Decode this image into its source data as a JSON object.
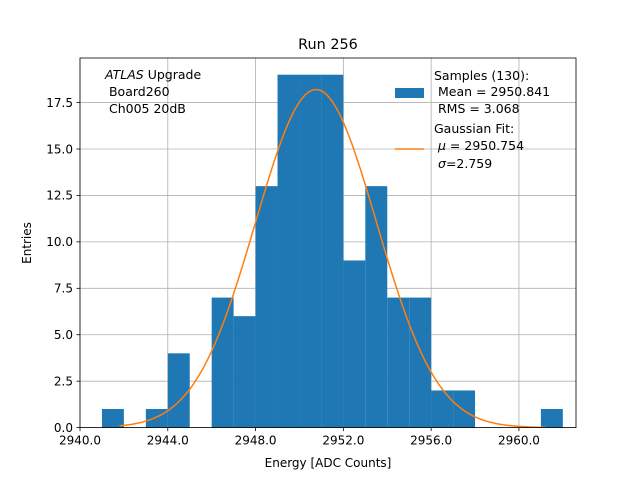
{
  "chart_data": {
    "type": "bar",
    "title": "Run 256",
    "xlabel": "Energy [ADC Counts]",
    "ylabel": "Entries",
    "xlim": [
      2940.0,
      2962.6
    ],
    "ylim": [
      0,
      19.9
    ],
    "xticks": [
      "2940.0",
      "2944.0",
      "2948.0",
      "2952.0",
      "2956.0",
      "2960.0"
    ],
    "xtick_values": [
      2940,
      2944,
      2948,
      2952,
      2956,
      2960
    ],
    "yticks": [
      "0.0",
      "2.5",
      "5.0",
      "7.5",
      "10.0",
      "12.5",
      "15.0",
      "17.5"
    ],
    "ytick_values": [
      0,
      2.5,
      5,
      7.5,
      10,
      12.5,
      15,
      17.5
    ],
    "grid": true,
    "bins": [
      {
        "x0": 2941.0,
        "x1": 2942.0,
        "value": 1
      },
      {
        "x0": 2942.0,
        "x1": 2943.0,
        "value": 0
      },
      {
        "x0": 2943.0,
        "x1": 2944.0,
        "value": 1
      },
      {
        "x0": 2944.0,
        "x1": 2945.0,
        "value": 4
      },
      {
        "x0": 2945.0,
        "x1": 2946.0,
        "value": 0
      },
      {
        "x0": 2946.0,
        "x1": 2947.0,
        "value": 7
      },
      {
        "x0": 2947.0,
        "x1": 2948.0,
        "value": 6
      },
      {
        "x0": 2948.0,
        "x1": 2949.0,
        "value": 13
      },
      {
        "x0": 2949.0,
        "x1": 2950.0,
        "value": 19
      },
      {
        "x0": 2950.0,
        "x1": 2951.0,
        "value": 19
      },
      {
        "x0": 2951.0,
        "x1": 2952.0,
        "value": 19
      },
      {
        "x0": 2952.0,
        "x1": 2953.0,
        "value": 9
      },
      {
        "x0": 2953.0,
        "x1": 2954.0,
        "value": 13
      },
      {
        "x0": 2954.0,
        "x1": 2955.0,
        "value": 7
      },
      {
        "x0": 2955.0,
        "x1": 2956.0,
        "value": 7
      },
      {
        "x0": 2956.0,
        "x1": 2957.0,
        "value": 2
      },
      {
        "x0": 2957.0,
        "x1": 2958.0,
        "value": 2
      },
      {
        "x0": 2958.0,
        "x1": 2959.0,
        "value": 0
      },
      {
        "x0": 2959.0,
        "x1": 2960.0,
        "value": 0
      },
      {
        "x0": 2960.0,
        "x1": 2961.0,
        "value": 0
      },
      {
        "x0": 2961.0,
        "x1": 2962.0,
        "value": 1
      }
    ],
    "fit": {
      "type": "gaussian",
      "mu": 2950.754,
      "sigma": 2.759,
      "amplitude": 18.2,
      "x_range": [
        2941.8,
        2961.2
      ]
    },
    "colors": {
      "bars": "#1f77b4",
      "fit": "#ff7f0e",
      "grid": "#b0b0b0"
    },
    "annotation": {
      "italic_word": "ATLAS",
      "line1_rest": " Upgrade",
      "line2": " Board260",
      "line3": " Ch005 20dB"
    },
    "legend": {
      "placement": "upper-right",
      "hist_lines": [
        "Samples (130):",
        " Mean = 2950.841",
        " RMS = 3.068"
      ],
      "fit_line1": "Gaussian Fit:",
      "fit_mu_symbol": "μ",
      "fit_mu_text": " = 2950.754",
      "fit_sigma_symbol": "σ",
      "fit_sigma_text": "=2.759"
    }
  }
}
